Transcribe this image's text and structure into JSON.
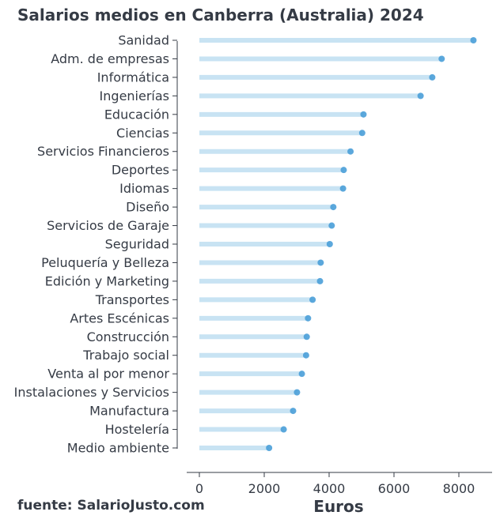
{
  "chart_data": {
    "type": "lollipop-horizontal",
    "title": "Salarios medios en Canberra (Australia) 2024",
    "xlabel": "Euros",
    "ylabel": "",
    "source": "fuente: SalarioJusto.com",
    "xlim": [
      0,
      8600
    ],
    "xticks": [
      0,
      2000,
      4000,
      6000,
      8000
    ],
    "grid": false,
    "colors": {
      "stem": "#c8e3f3",
      "dot": "#4a9fd8",
      "text": "#353b45",
      "axis": "#353b45"
    },
    "categories": [
      "Sanidad",
      "Adm. de empresas",
      "Informática",
      "Ingenierías",
      "Educación",
      "Ciencias",
      "Servicios Financieros",
      "Deportes",
      "Idiomas",
      "Diseño",
      "Servicios de Garaje",
      "Seguridad",
      "Peluquería y Belleza",
      "Edición y Marketing",
      "Transportes",
      "Artes Escénicas",
      "Construcción",
      "Trabajo social",
      "Venta al por menor",
      "Instalaciones y Servicios",
      "Manufactura",
      "Hostelería",
      "Medio ambiente"
    ],
    "values": [
      8450,
      7470,
      7180,
      6820,
      5060,
      5020,
      4660,
      4450,
      4430,
      4130,
      4080,
      4020,
      3740,
      3720,
      3490,
      3350,
      3310,
      3290,
      3160,
      3010,
      2890,
      2600,
      2150
    ]
  }
}
